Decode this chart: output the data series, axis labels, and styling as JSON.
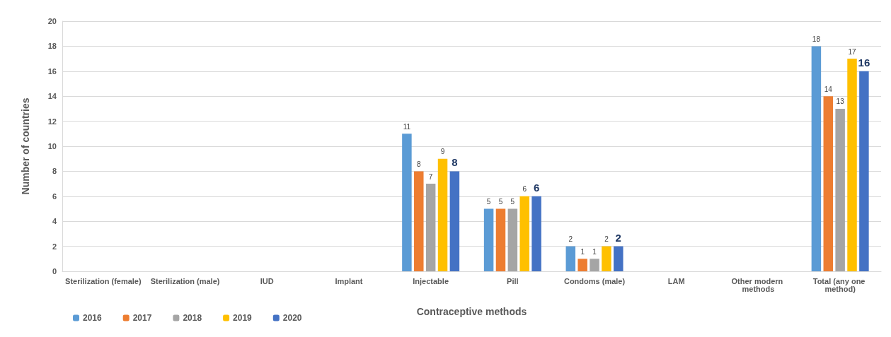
{
  "chart_data": {
    "type": "bar",
    "xlabel": "Contraceptive methods",
    "ylabel": "Number of countries",
    "categories": [
      "Sterilization (female)",
      "Sterilization (male)",
      "IUD",
      "Implant",
      "Injectable",
      "Pill",
      "Condoms (male)",
      "LAM",
      "Other modern methods",
      "Total (any one method)"
    ],
    "series": [
      {
        "name": "2016",
        "color": "#5b9bd5",
        "values": [
          0,
          0,
          0,
          0,
          11,
          5,
          2,
          0,
          0,
          18
        ],
        "value_labels": [
          null,
          null,
          null,
          null,
          "11",
          "5",
          "2",
          null,
          null,
          "18"
        ]
      },
      {
        "name": "2017",
        "color": "#ed7d31",
        "values": [
          0,
          0,
          0,
          0,
          8,
          5,
          1,
          0,
          0,
          14
        ],
        "value_labels": [
          null,
          null,
          null,
          null,
          "8",
          "5",
          "1",
          null,
          null,
          "14"
        ]
      },
      {
        "name": "2018",
        "color": "#a5a5a5",
        "values": [
          0,
          0,
          0,
          0,
          7,
          5,
          1,
          0,
          0,
          13
        ],
        "value_labels": [
          null,
          null,
          null,
          null,
          "7",
          "5",
          "1",
          null,
          null,
          "13"
        ]
      },
      {
        "name": "2019",
        "color": "#ffc000",
        "values": [
          0,
          0,
          0,
          0,
          9,
          6,
          2,
          0,
          0,
          17
        ],
        "value_labels": [
          null,
          null,
          null,
          null,
          "9",
          "6",
          "2",
          null,
          null,
          "17"
        ]
      },
      {
        "name": "2020",
        "color": "#4472c4",
        "values": [
          0,
          0,
          0,
          0,
          8,
          6,
          2,
          0,
          0,
          16
        ],
        "value_labels": [
          null,
          null,
          null,
          null,
          "8",
          "6",
          "2",
          null,
          null,
          "16"
        ]
      }
    ],
    "ylim": [
      0,
      20
    ],
    "yticks": [
      0,
      2,
      4,
      6,
      8,
      10,
      12,
      14,
      16,
      18,
      20
    ],
    "grid": "y",
    "legend": "bottom left"
  }
}
